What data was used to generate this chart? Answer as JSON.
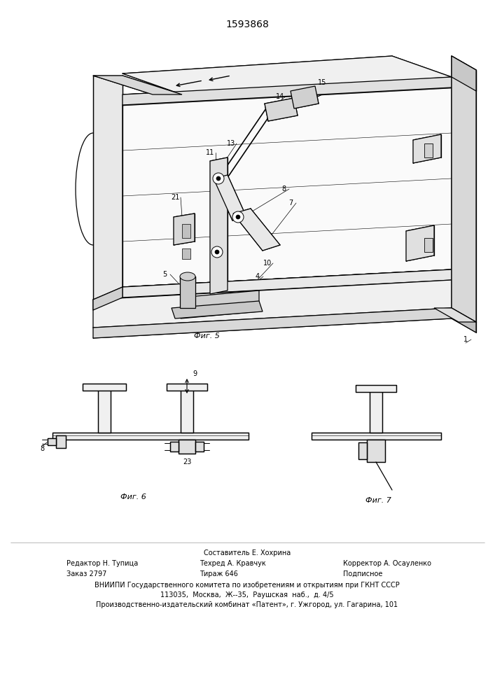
{
  "patent_number": "1593868",
  "background_color": "#ffffff",
  "line_color": "#000000",
  "fig5_label": "Фиг. 5",
  "fig6_label": "Фиг. 6",
  "fig7_label": "Фиг. 7",
  "footer_line0_center": "Составитель Е. Хохрина",
  "footer_line1_left": "Редактор Н. Тупица",
  "footer_line1_center": "Техред А. Кравчук",
  "footer_line1_right": "Корректор А. Осауленко",
  "footer_line2_left": "Заказ 2797",
  "footer_line2_center": "Тираж 646",
  "footer_line2_right": "Подписное",
  "footer_line3": "ВНИИПИ Государственного комитета по изобретениям и открытиям при ГКНТ СССР",
  "footer_line4": "113035,  Москва,  Ж--35,  Раушская  наб.,  д. 4/5",
  "footer_line5": "Производственно-издательский комбинат «Патент», г. Ужгород, ул. Гагарина, 101"
}
